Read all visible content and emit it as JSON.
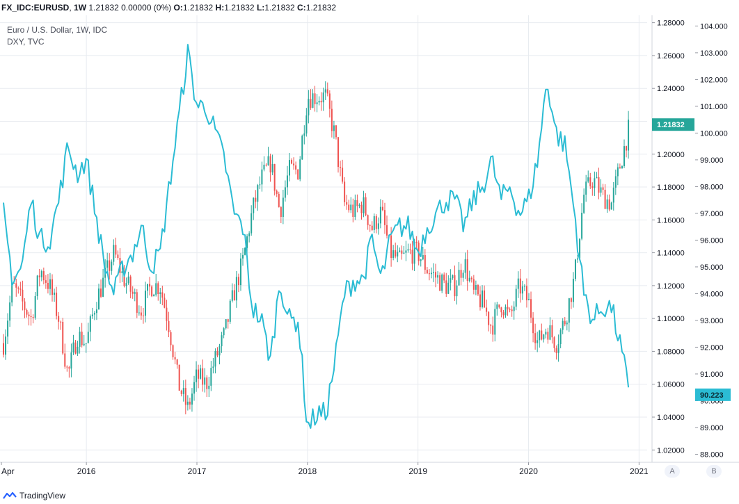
{
  "header": {
    "symbol": "FX_IDC:EURUSD",
    "interval": "1W",
    "quote_summary": "1.21832 0.00000 (0%)",
    "open_label": "O:",
    "open": "1.21832",
    "high_label": "H:",
    "high": "1.21832",
    "low_label": "L:",
    "low": "1.21832",
    "close_label": "C:",
    "close": "1.21832"
  },
  "legend": {
    "main": "Euro / U.S. Dollar, 1W, IDC",
    "overlay": "DXY, TVC"
  },
  "footer": {
    "brand": "TradingView"
  },
  "scale_buttons": {
    "a": "A",
    "b": "B"
  },
  "colors": {
    "up": "#26a69a",
    "down": "#ef5350",
    "dxy_line": "#2bbcd4",
    "grid": "#e8ebf0",
    "axis_text": "#131722",
    "last_price_bg": "#26a69a",
    "dxy_price_bg": "#2bbcd4"
  },
  "chart_data": {
    "type": "candlestick",
    "title": "Euro / U.S. Dollar, 1W, IDC",
    "x_ticks": [
      "Apr",
      "2016",
      "2017",
      "2018",
      "2019",
      "2020",
      "2021"
    ],
    "x_range": [
      "2015-04",
      "2021-01"
    ],
    "y_left_axis": {
      "label": "EURUSD",
      "ticks": [
        "1.28000",
        "1.26000",
        "1.24000",
        "1.22000",
        "1.20000",
        "1.18000",
        "1.16000",
        "1.14000",
        "1.12000",
        "1.10000",
        "1.08000",
        "1.06000",
        "1.04000",
        "1.02000"
      ],
      "range": [
        1.0125,
        1.2845
      ]
    },
    "y_right_axis": {
      "label": "DXY",
      "ticks": [
        "104.000",
        "103.000",
        "102.000",
        "101.000",
        "100.000",
        "99.000",
        "98.000",
        "97.000",
        "96.000",
        "95.000",
        "94.000",
        "93.000",
        "92.000",
        "91.000",
        "90.000",
        "89.000",
        "88.000"
      ],
      "range": [
        87.7,
        104.4
      ]
    },
    "last_price_label": "1.21832",
    "dxy_last_label": "90.223",
    "grid": true,
    "series": [
      {
        "name": "EURUSD",
        "style": "candles",
        "anchors": [
          [
            "2015-04",
            1.085
          ],
          [
            "2015-05",
            1.12
          ],
          [
            "2015-06",
            1.11
          ],
          [
            "2015-07",
            1.1
          ],
          [
            "2015-08",
            1.13
          ],
          [
            "2015-09",
            1.12
          ],
          [
            "2015-10",
            1.1
          ],
          [
            "2015-11",
            1.065
          ],
          [
            "2015-12",
            1.09
          ],
          [
            "2016-01",
            1.085
          ],
          [
            "2016-02",
            1.11
          ],
          [
            "2016-03",
            1.125
          ],
          [
            "2016-04",
            1.14
          ],
          [
            "2016-05",
            1.125
          ],
          [
            "2016-06",
            1.115
          ],
          [
            "2016-07",
            1.105
          ],
          [
            "2016-08",
            1.12
          ],
          [
            "2016-09",
            1.12
          ],
          [
            "2016-10",
            1.095
          ],
          [
            "2016-11",
            1.06
          ],
          [
            "2016-12",
            1.045
          ],
          [
            "2017-01",
            1.065
          ],
          [
            "2017-02",
            1.06
          ],
          [
            "2017-03",
            1.075
          ],
          [
            "2017-04",
            1.09
          ],
          [
            "2017-05",
            1.115
          ],
          [
            "2017-06",
            1.135
          ],
          [
            "2017-07",
            1.165
          ],
          [
            "2017-08",
            1.185
          ],
          [
            "2017-09",
            1.195
          ],
          [
            "2017-10",
            1.165
          ],
          [
            "2017-11",
            1.19
          ],
          [
            "2017-12",
            1.19
          ],
          [
            "2018-01",
            1.235
          ],
          [
            "2018-02",
            1.235
          ],
          [
            "2018-03",
            1.235
          ],
          [
            "2018-04",
            1.21
          ],
          [
            "2018-05",
            1.17
          ],
          [
            "2018-06",
            1.165
          ],
          [
            "2018-07",
            1.17
          ],
          [
            "2018-08",
            1.155
          ],
          [
            "2018-09",
            1.165
          ],
          [
            "2018-10",
            1.14
          ],
          [
            "2018-11",
            1.135
          ],
          [
            "2018-12",
            1.14
          ],
          [
            "2019-01",
            1.14
          ],
          [
            "2019-02",
            1.13
          ],
          [
            "2019-03",
            1.125
          ],
          [
            "2019-04",
            1.12
          ],
          [
            "2019-05",
            1.12
          ],
          [
            "2019-06",
            1.135
          ],
          [
            "2019-07",
            1.115
          ],
          [
            "2019-08",
            1.11
          ],
          [
            "2019-09",
            1.095
          ],
          [
            "2019-10",
            1.11
          ],
          [
            "2019-11",
            1.1
          ],
          [
            "2019-12",
            1.12
          ],
          [
            "2020-01",
            1.11
          ],
          [
            "2020-02",
            1.085
          ],
          [
            "2020-03",
            1.095
          ],
          [
            "2020-04",
            1.085
          ],
          [
            "2020-05",
            1.1
          ],
          [
            "2020-06",
            1.125
          ],
          [
            "2020-07",
            1.175
          ],
          [
            "2020-08",
            1.185
          ],
          [
            "2020-09",
            1.175
          ],
          [
            "2020-10",
            1.17
          ],
          [
            "2020-11",
            1.195
          ],
          [
            "2020-12",
            1.218
          ]
        ]
      },
      {
        "name": "DXY",
        "style": "line",
        "anchors": [
          [
            "2015-04",
            97.0
          ],
          [
            "2015-05",
            94.5
          ],
          [
            "2015-06",
            95.0
          ],
          [
            "2015-07",
            97.5
          ],
          [
            "2015-08",
            96.0
          ],
          [
            "2015-09",
            96.0
          ],
          [
            "2015-10",
            97.5
          ],
          [
            "2015-11",
            99.5
          ],
          [
            "2015-12",
            98.5
          ],
          [
            "2016-01",
            99.0
          ],
          [
            "2016-02",
            97.0
          ],
          [
            "2016-03",
            95.0
          ],
          [
            "2016-04",
            94.0
          ],
          [
            "2016-05",
            95.0
          ],
          [
            "2016-06",
            95.5
          ],
          [
            "2016-07",
            96.5
          ],
          [
            "2016-08",
            95.0
          ],
          [
            "2016-09",
            95.5
          ],
          [
            "2016-10",
            98.0
          ],
          [
            "2016-11",
            100.5
          ],
          [
            "2016-12",
            103.0
          ],
          [
            "2017-01",
            101.0
          ],
          [
            "2017-02",
            101.0
          ],
          [
            "2017-03",
            100.0
          ],
          [
            "2017-04",
            99.0
          ],
          [
            "2017-05",
            97.0
          ],
          [
            "2017-06",
            96.5
          ],
          [
            "2017-07",
            93.5
          ],
          [
            "2017-08",
            93.0
          ],
          [
            "2017-09",
            91.5
          ],
          [
            "2017-10",
            94.5
          ],
          [
            "2017-11",
            93.0
          ],
          [
            "2017-12",
            93.0
          ],
          [
            "2018-01",
            89.0
          ],
          [
            "2018-02",
            89.5
          ],
          [
            "2018-03",
            89.5
          ],
          [
            "2018-04",
            91.5
          ],
          [
            "2018-05",
            94.0
          ],
          [
            "2018-06",
            94.5
          ],
          [
            "2018-07",
            94.5
          ],
          [
            "2018-08",
            96.0
          ],
          [
            "2018-09",
            94.5
          ],
          [
            "2018-10",
            96.0
          ],
          [
            "2018-11",
            96.5
          ],
          [
            "2018-12",
            96.5
          ],
          [
            "2019-01",
            95.5
          ],
          [
            "2019-02",
            96.5
          ],
          [
            "2019-03",
            97.0
          ],
          [
            "2019-04",
            97.5
          ],
          [
            "2019-05",
            97.5
          ],
          [
            "2019-06",
            96.5
          ],
          [
            "2019-07",
            97.5
          ],
          [
            "2019-08",
            98.0
          ],
          [
            "2019-09",
            99.0
          ],
          [
            "2019-10",
            97.5
          ],
          [
            "2019-11",
            98.0
          ],
          [
            "2019-12",
            97.0
          ],
          [
            "2020-01",
            97.5
          ],
          [
            "2020-02",
            99.0
          ],
          [
            "2020-03",
            102.0
          ],
          [
            "2020-04",
            100.0
          ],
          [
            "2020-05",
            99.5
          ],
          [
            "2020-06",
            97.0
          ],
          [
            "2020-07",
            94.0
          ],
          [
            "2020-08",
            93.0
          ],
          [
            "2020-09",
            93.5
          ],
          [
            "2020-10",
            93.5
          ],
          [
            "2020-11",
            92.0
          ],
          [
            "2020-12",
            90.223
          ]
        ]
      }
    ]
  }
}
